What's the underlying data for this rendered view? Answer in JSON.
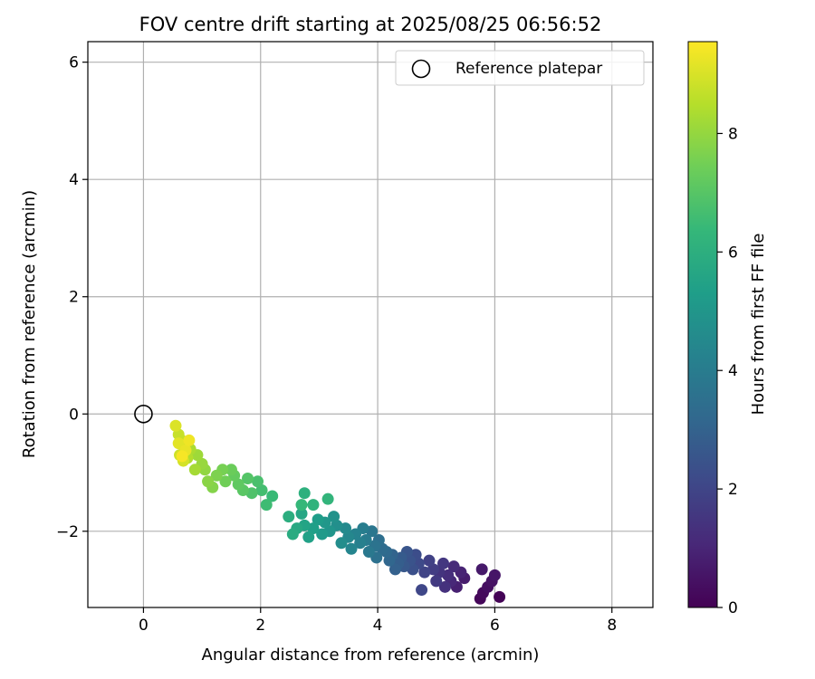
{
  "chart_data": {
    "type": "scatter",
    "title": "FOV centre drift starting at 2025/08/25 06:56:52",
    "xlabel": "Angular distance from reference (arcmin)",
    "ylabel": "Rotation from reference (arcmin)",
    "xlim": [
      -0.95,
      8.7
    ],
    "ylim": [
      -3.3,
      6.35
    ],
    "xticks": [
      0,
      2,
      4,
      6,
      8
    ],
    "yticks": [
      -2,
      0,
      2,
      4,
      6
    ],
    "xtick_labels": [
      "0",
      "2",
      "4",
      "6",
      "8"
    ],
    "ytick_labels": [
      "−2",
      "0",
      "2",
      "4",
      "6"
    ],
    "grid": true,
    "legend": {
      "label": "Reference platepar",
      "placement": "top-right"
    },
    "reference_point": {
      "x": 0,
      "y": 0
    },
    "colorbar": {
      "label": "Hours from first FF file",
      "colormap": "viridis",
      "range": [
        0,
        9.55
      ],
      "ticks": [
        0,
        2,
        4,
        6,
        8
      ],
      "tick_labels": [
        "0",
        "2",
        "4",
        "6",
        "8"
      ]
    },
    "colors": {
      "viridis": [
        "#440154",
        "#482878",
        "#3e4989",
        "#31688e",
        "#26828e",
        "#1f9e89",
        "#35b779",
        "#6ece58",
        "#b5de2b",
        "#fde725"
      ]
    },
    "points": [
      [
        6.08,
        -3.12,
        0.05
      ],
      [
        5.75,
        -3.15,
        0.15
      ],
      [
        5.8,
        -3.05,
        0.25
      ],
      [
        5.88,
        -2.95,
        0.35
      ],
      [
        5.95,
        -2.85,
        0.45
      ],
      [
        6.0,
        -2.75,
        0.55
      ],
      [
        5.78,
        -2.65,
        0.65
      ],
      [
        5.48,
        -2.8,
        0.75
      ],
      [
        5.35,
        -2.95,
        0.85
      ],
      [
        5.42,
        -2.7,
        0.95
      ],
      [
        5.25,
        -2.85,
        1.05
      ],
      [
        5.3,
        -2.6,
        1.15
      ],
      [
        5.2,
        -2.75,
        1.25
      ],
      [
        5.15,
        -2.95,
        1.35
      ],
      [
        5.05,
        -2.7,
        1.45
      ],
      [
        5.12,
        -2.55,
        1.55
      ],
      [
        5.0,
        -2.85,
        1.65
      ],
      [
        4.95,
        -2.65,
        1.75
      ],
      [
        4.88,
        -2.5,
        1.85
      ],
      [
        4.8,
        -2.7,
        1.95
      ],
      [
        4.75,
        -3.0,
        2.05
      ],
      [
        4.7,
        -2.55,
        2.15
      ],
      [
        4.65,
        -2.4,
        2.25
      ],
      [
        4.6,
        -2.65,
        2.35
      ],
      [
        4.55,
        -2.5,
        2.45
      ],
      [
        4.5,
        -2.35,
        2.55
      ],
      [
        4.45,
        -2.6,
        2.65
      ],
      [
        4.4,
        -2.45,
        2.75
      ],
      [
        4.35,
        -2.55,
        2.85
      ],
      [
        4.3,
        -2.65,
        2.95
      ],
      [
        4.25,
        -2.4,
        3.05
      ],
      [
        4.2,
        -2.5,
        3.15
      ],
      [
        4.15,
        -2.35,
        3.25
      ],
      [
        4.08,
        -2.3,
        3.35
      ],
      [
        4.02,
        -2.15,
        3.45
      ],
      [
        3.98,
        -2.45,
        3.55
      ],
      [
        3.95,
        -2.25,
        3.65
      ],
      [
        3.9,
        -2.0,
        3.75
      ],
      [
        3.85,
        -2.35,
        3.85
      ],
      [
        3.8,
        -2.15,
        3.95
      ],
      [
        3.75,
        -1.95,
        4.05
      ],
      [
        3.7,
        -2.2,
        4.15
      ],
      [
        3.62,
        -2.05,
        4.25
      ],
      [
        3.55,
        -2.3,
        4.35
      ],
      [
        3.5,
        -2.1,
        4.45
      ],
      [
        3.45,
        -1.95,
        4.55
      ],
      [
        3.38,
        -2.2,
        4.65
      ],
      [
        3.3,
        -1.9,
        4.75
      ],
      [
        3.25,
        -1.75,
        4.85
      ],
      [
        3.18,
        -2.0,
        4.95
      ],
      [
        3.1,
        -1.85,
        5.05
      ],
      [
        3.05,
        -2.05,
        5.15
      ],
      [
        2.98,
        -1.8,
        5.25
      ],
      [
        2.9,
        -1.95,
        5.35
      ],
      [
        2.82,
        -2.1,
        5.45
      ],
      [
        2.75,
        -1.9,
        5.55
      ],
      [
        2.7,
        -1.7,
        5.65
      ],
      [
        2.62,
        -1.95,
        5.75
      ],
      [
        2.55,
        -2.05,
        5.85
      ],
      [
        2.48,
        -1.75,
        5.95
      ],
      [
        2.75,
        -1.35,
        6.05
      ],
      [
        2.9,
        -1.55,
        6.15
      ],
      [
        3.15,
        -1.45,
        6.25
      ],
      [
        2.7,
        -1.55,
        6.35
      ],
      [
        2.2,
        -1.4,
        6.45
      ],
      [
        2.1,
        -1.55,
        6.55
      ],
      [
        2.02,
        -1.3,
        6.65
      ],
      [
        1.95,
        -1.15,
        6.75
      ],
      [
        1.85,
        -1.35,
        6.85
      ],
      [
        1.78,
        -1.1,
        6.95
      ],
      [
        1.7,
        -1.3,
        7.05
      ],
      [
        1.62,
        -1.2,
        7.15
      ],
      [
        1.55,
        -1.05,
        7.25
      ],
      [
        1.5,
        -0.95,
        7.35
      ],
      [
        1.4,
        -1.15,
        7.45
      ],
      [
        1.35,
        -0.95,
        7.55
      ],
      [
        1.25,
        -1.05,
        7.65
      ],
      [
        1.18,
        -1.25,
        7.75
      ],
      [
        1.1,
        -1.15,
        7.85
      ],
      [
        1.05,
        -0.95,
        7.95
      ],
      [
        1.0,
        -0.85,
        8.05
      ],
      [
        0.92,
        -0.7,
        8.15
      ],
      [
        0.88,
        -0.95,
        8.25
      ],
      [
        0.8,
        -0.6,
        8.35
      ],
      [
        0.75,
        -0.75,
        8.45
      ],
      [
        0.7,
        -0.55,
        8.55
      ],
      [
        0.65,
        -0.45,
        8.65
      ],
      [
        0.6,
        -0.35,
        8.75
      ],
      [
        0.62,
        -0.7,
        8.85
      ],
      [
        0.68,
        -0.8,
        8.95
      ],
      [
        0.55,
        -0.2,
        9.05
      ],
      [
        0.6,
        -0.5,
        9.15
      ],
      [
        0.72,
        -0.62,
        9.25
      ],
      [
        0.78,
        -0.45,
        9.35
      ],
      [
        0.66,
        -0.72,
        9.45
      ]
    ]
  }
}
